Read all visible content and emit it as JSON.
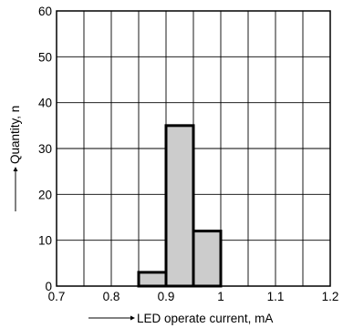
{
  "chart_data": {
    "type": "bar",
    "subtype": "histogram",
    "title": "",
    "xlabel": "LED operate current, mA",
    "ylabel": "Quantity, n",
    "xlim": [
      0.7,
      1.2
    ],
    "ylim": [
      0,
      60
    ],
    "x_ticks": [
      "0.7",
      "0.8",
      "0.9",
      "1",
      "1.1",
      "1.2"
    ],
    "y_ticks": [
      "0",
      "10",
      "20",
      "30",
      "40",
      "50",
      "60"
    ],
    "bin_width": 0.05,
    "bins": [
      {
        "start": 0.85,
        "end": 0.9,
        "value": 3
      },
      {
        "start": 0.9,
        "end": 0.95,
        "value": 35
      },
      {
        "start": 0.95,
        "end": 1.0,
        "value": 12
      }
    ],
    "grid": true,
    "bar_fill": "#cccccc",
    "bar_edge": "#000000",
    "grid_color": "#000000"
  }
}
